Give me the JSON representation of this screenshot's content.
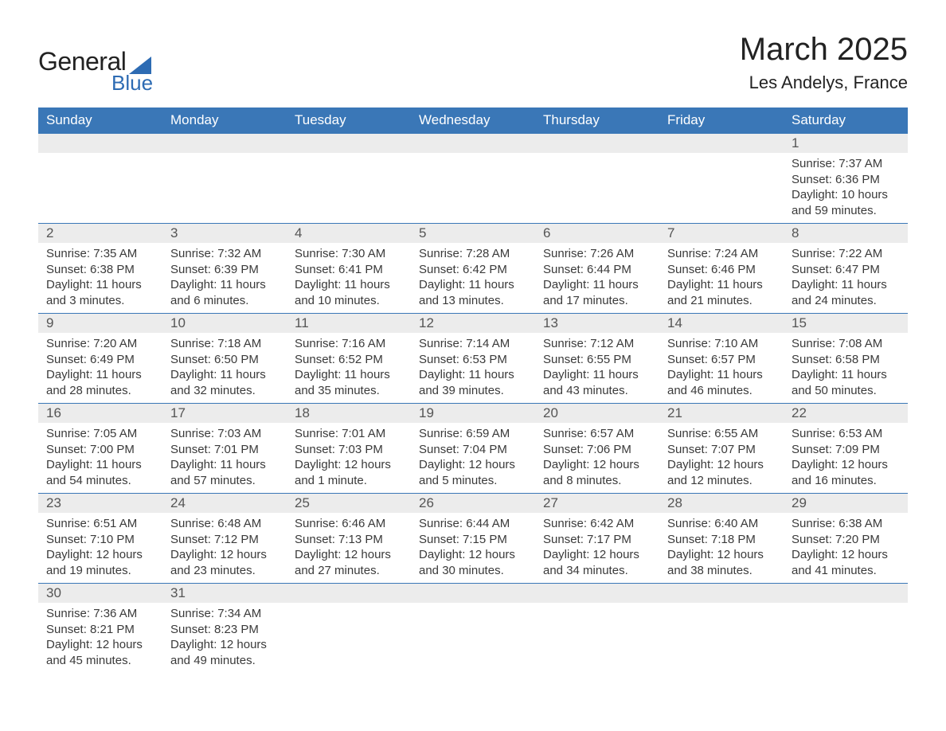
{
  "logo": {
    "word1": "General",
    "word2": "Blue",
    "accent_color": "#2d6bb3"
  },
  "title": "March 2025",
  "location": "Les Andelys, France",
  "header_bg": "#3a77b7",
  "header_fg": "#ffffff",
  "daynum_bg": "#ececec",
  "text_color": "#3a3a3a",
  "weekdays": [
    "Sunday",
    "Monday",
    "Tuesday",
    "Wednesday",
    "Thursday",
    "Friday",
    "Saturday"
  ],
  "weeks": [
    [
      null,
      null,
      null,
      null,
      null,
      null,
      {
        "n": "1",
        "sr": "Sunrise: 7:37 AM",
        "ss": "Sunset: 6:36 PM",
        "d1": "Daylight: 10 hours",
        "d2": "and 59 minutes."
      }
    ],
    [
      {
        "n": "2",
        "sr": "Sunrise: 7:35 AM",
        "ss": "Sunset: 6:38 PM",
        "d1": "Daylight: 11 hours",
        "d2": "and 3 minutes."
      },
      {
        "n": "3",
        "sr": "Sunrise: 7:32 AM",
        "ss": "Sunset: 6:39 PM",
        "d1": "Daylight: 11 hours",
        "d2": "and 6 minutes."
      },
      {
        "n": "4",
        "sr": "Sunrise: 7:30 AM",
        "ss": "Sunset: 6:41 PM",
        "d1": "Daylight: 11 hours",
        "d2": "and 10 minutes."
      },
      {
        "n": "5",
        "sr": "Sunrise: 7:28 AM",
        "ss": "Sunset: 6:42 PM",
        "d1": "Daylight: 11 hours",
        "d2": "and 13 minutes."
      },
      {
        "n": "6",
        "sr": "Sunrise: 7:26 AM",
        "ss": "Sunset: 6:44 PM",
        "d1": "Daylight: 11 hours",
        "d2": "and 17 minutes."
      },
      {
        "n": "7",
        "sr": "Sunrise: 7:24 AM",
        "ss": "Sunset: 6:46 PM",
        "d1": "Daylight: 11 hours",
        "d2": "and 21 minutes."
      },
      {
        "n": "8",
        "sr": "Sunrise: 7:22 AM",
        "ss": "Sunset: 6:47 PM",
        "d1": "Daylight: 11 hours",
        "d2": "and 24 minutes."
      }
    ],
    [
      {
        "n": "9",
        "sr": "Sunrise: 7:20 AM",
        "ss": "Sunset: 6:49 PM",
        "d1": "Daylight: 11 hours",
        "d2": "and 28 minutes."
      },
      {
        "n": "10",
        "sr": "Sunrise: 7:18 AM",
        "ss": "Sunset: 6:50 PM",
        "d1": "Daylight: 11 hours",
        "d2": "and 32 minutes."
      },
      {
        "n": "11",
        "sr": "Sunrise: 7:16 AM",
        "ss": "Sunset: 6:52 PM",
        "d1": "Daylight: 11 hours",
        "d2": "and 35 minutes."
      },
      {
        "n": "12",
        "sr": "Sunrise: 7:14 AM",
        "ss": "Sunset: 6:53 PM",
        "d1": "Daylight: 11 hours",
        "d2": "and 39 minutes."
      },
      {
        "n": "13",
        "sr": "Sunrise: 7:12 AM",
        "ss": "Sunset: 6:55 PM",
        "d1": "Daylight: 11 hours",
        "d2": "and 43 minutes."
      },
      {
        "n": "14",
        "sr": "Sunrise: 7:10 AM",
        "ss": "Sunset: 6:57 PM",
        "d1": "Daylight: 11 hours",
        "d2": "and 46 minutes."
      },
      {
        "n": "15",
        "sr": "Sunrise: 7:08 AM",
        "ss": "Sunset: 6:58 PM",
        "d1": "Daylight: 11 hours",
        "d2": "and 50 minutes."
      }
    ],
    [
      {
        "n": "16",
        "sr": "Sunrise: 7:05 AM",
        "ss": "Sunset: 7:00 PM",
        "d1": "Daylight: 11 hours",
        "d2": "and 54 minutes."
      },
      {
        "n": "17",
        "sr": "Sunrise: 7:03 AM",
        "ss": "Sunset: 7:01 PM",
        "d1": "Daylight: 11 hours",
        "d2": "and 57 minutes."
      },
      {
        "n": "18",
        "sr": "Sunrise: 7:01 AM",
        "ss": "Sunset: 7:03 PM",
        "d1": "Daylight: 12 hours",
        "d2": "and 1 minute."
      },
      {
        "n": "19",
        "sr": "Sunrise: 6:59 AM",
        "ss": "Sunset: 7:04 PM",
        "d1": "Daylight: 12 hours",
        "d2": "and 5 minutes."
      },
      {
        "n": "20",
        "sr": "Sunrise: 6:57 AM",
        "ss": "Sunset: 7:06 PM",
        "d1": "Daylight: 12 hours",
        "d2": "and 8 minutes."
      },
      {
        "n": "21",
        "sr": "Sunrise: 6:55 AM",
        "ss": "Sunset: 7:07 PM",
        "d1": "Daylight: 12 hours",
        "d2": "and 12 minutes."
      },
      {
        "n": "22",
        "sr": "Sunrise: 6:53 AM",
        "ss": "Sunset: 7:09 PM",
        "d1": "Daylight: 12 hours",
        "d2": "and 16 minutes."
      }
    ],
    [
      {
        "n": "23",
        "sr": "Sunrise: 6:51 AM",
        "ss": "Sunset: 7:10 PM",
        "d1": "Daylight: 12 hours",
        "d2": "and 19 minutes."
      },
      {
        "n": "24",
        "sr": "Sunrise: 6:48 AM",
        "ss": "Sunset: 7:12 PM",
        "d1": "Daylight: 12 hours",
        "d2": "and 23 minutes."
      },
      {
        "n": "25",
        "sr": "Sunrise: 6:46 AM",
        "ss": "Sunset: 7:13 PM",
        "d1": "Daylight: 12 hours",
        "d2": "and 27 minutes."
      },
      {
        "n": "26",
        "sr": "Sunrise: 6:44 AM",
        "ss": "Sunset: 7:15 PM",
        "d1": "Daylight: 12 hours",
        "d2": "and 30 minutes."
      },
      {
        "n": "27",
        "sr": "Sunrise: 6:42 AM",
        "ss": "Sunset: 7:17 PM",
        "d1": "Daylight: 12 hours",
        "d2": "and 34 minutes."
      },
      {
        "n": "28",
        "sr": "Sunrise: 6:40 AM",
        "ss": "Sunset: 7:18 PM",
        "d1": "Daylight: 12 hours",
        "d2": "and 38 minutes."
      },
      {
        "n": "29",
        "sr": "Sunrise: 6:38 AM",
        "ss": "Sunset: 7:20 PM",
        "d1": "Daylight: 12 hours",
        "d2": "and 41 minutes."
      }
    ],
    [
      {
        "n": "30",
        "sr": "Sunrise: 7:36 AM",
        "ss": "Sunset: 8:21 PM",
        "d1": "Daylight: 12 hours",
        "d2": "and 45 minutes."
      },
      {
        "n": "31",
        "sr": "Sunrise: 7:34 AM",
        "ss": "Sunset: 8:23 PM",
        "d1": "Daylight: 12 hours",
        "d2": "and 49 minutes."
      },
      null,
      null,
      null,
      null,
      null
    ]
  ]
}
